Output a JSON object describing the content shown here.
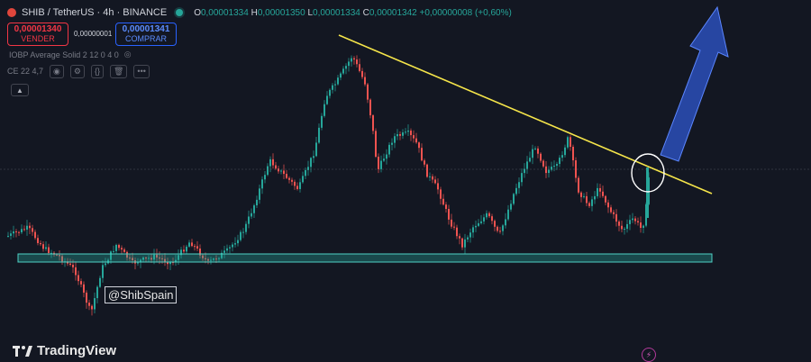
{
  "header": {
    "symbol": "SHIB / TetherUS · 4h · BINANCE",
    "ohlc": [
      {
        "k": "O",
        "v": "0,00001334"
      },
      {
        "k": "H",
        "v": "0,00001350"
      },
      {
        "k": "L",
        "v": "0,00001334"
      },
      {
        "k": "C",
        "v": "0,00001342"
      }
    ],
    "change": "+0,00000008 (+0,60%)"
  },
  "trade": {
    "sell_price": "0,00001340",
    "sell_label": "VENDER",
    "spread": "0,00000001",
    "buy_price": "0,00001341",
    "buy_label": "COMPRAR"
  },
  "indicators": {
    "line1": "IOBP Average Solid 2 12 0 4 0",
    "line2": "CE 22 4,7"
  },
  "watermark": "@ShibSpain",
  "brand": "TradingView",
  "colors": {
    "background": "#131722",
    "up": "#26a69a",
    "down": "#ef5350",
    "trendline": "#f5e54a",
    "support": "#26a69a",
    "arrow": "#2b4fb8"
  },
  "chart_data": {
    "type": "candlestick",
    "annotations": [
      "descending trendline",
      "horizontal support zone",
      "circle at trendline breakout",
      "upward arrow"
    ],
    "grid": false
  }
}
